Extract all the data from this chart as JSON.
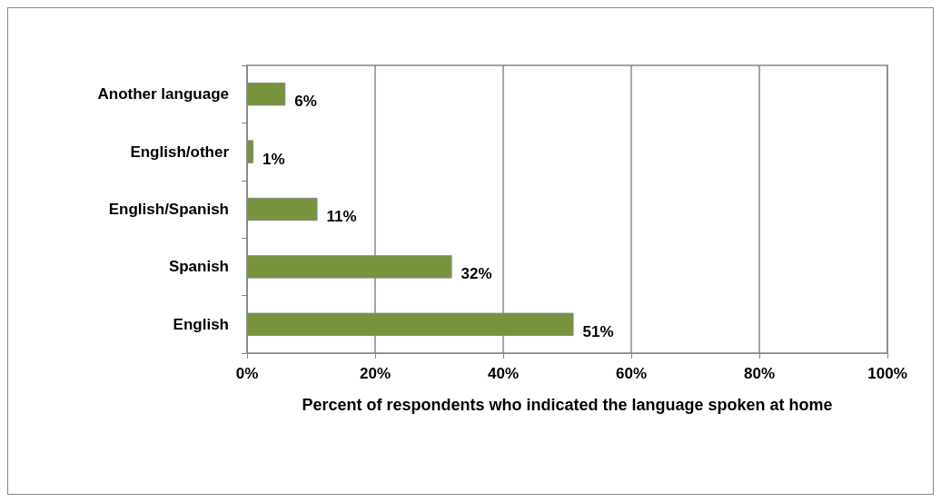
{
  "chart_data": {
    "type": "bar",
    "orientation": "horizontal",
    "xlabel": "Percent of respondents who indicated the language spoken at home",
    "categories": [
      "Another language",
      "English/other",
      "English/Spanish",
      "Spanish",
      "English"
    ],
    "values": [
      6,
      1,
      11,
      32,
      51
    ],
    "value_labels": [
      "6%",
      "1%",
      "11%",
      "32%",
      "51%"
    ],
    "color": "#77933c",
    "xlim": [
      0,
      100
    ],
    "xticks": [
      {
        "value": 0,
        "label": "0%"
      },
      {
        "value": 20,
        "label": "20%"
      },
      {
        "value": 40,
        "label": "40%"
      },
      {
        "value": 60,
        "label": "60%"
      },
      {
        "value": 80,
        "label": "80%"
      },
      {
        "value": 100,
        "label": "100%"
      }
    ],
    "grid": "x"
  }
}
